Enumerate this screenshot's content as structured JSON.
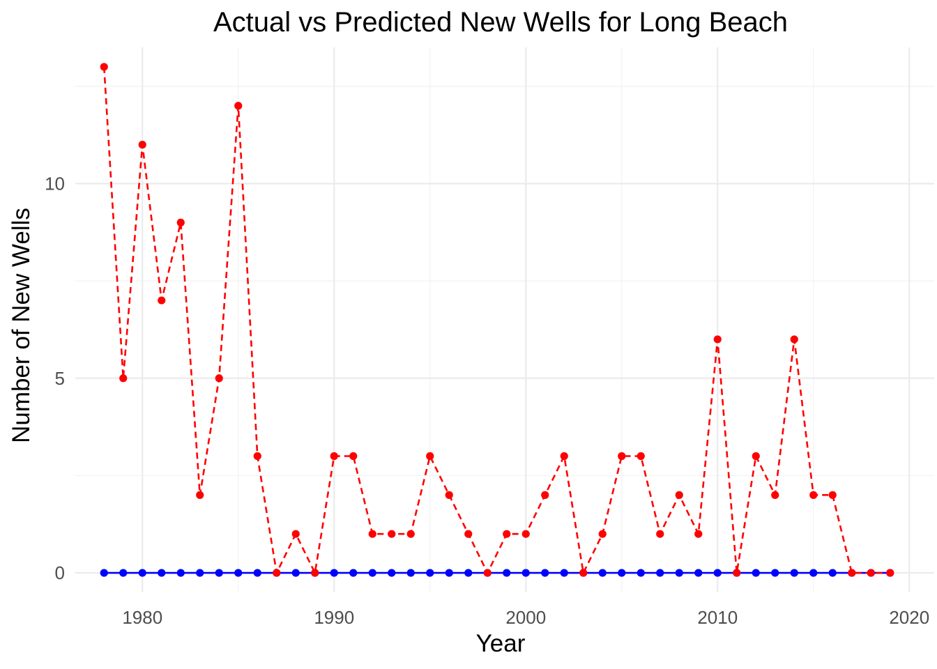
{
  "chart_data": {
    "type": "line",
    "title": "Actual vs Predicted New Wells for Long Beach",
    "xlabel": "Year",
    "ylabel": "Number of New Wells",
    "xlim": [
      1976.5,
      2021.3
    ],
    "ylim": [
      -0.5,
      13.5
    ],
    "x_ticks": [
      1980,
      1990,
      2000,
      2010,
      2020
    ],
    "y_ticks": [
      0,
      5,
      10
    ],
    "x_tick_labels": [
      "1980",
      "1990",
      "2000",
      "2010",
      "2020"
    ],
    "y_tick_labels": [
      "0",
      "5",
      "10"
    ],
    "grid": true,
    "legend": "none",
    "x": [
      1978,
      1979,
      1980,
      1981,
      1982,
      1983,
      1984,
      1985,
      1986,
      1987,
      1988,
      1989,
      1990,
      1991,
      1992,
      1993,
      1994,
      1995,
      1996,
      1997,
      1998,
      1999,
      2000,
      2001,
      2002,
      2003,
      2004,
      2005,
      2006,
      2007,
      2008,
      2009,
      2010,
      2011,
      2012,
      2013,
      2014,
      2015,
      2016,
      2017,
      2018,
      2019
    ],
    "series": [
      {
        "color": "#0000ff",
        "line_style": "solid",
        "values": [
          0,
          0,
          0,
          0,
          0,
          0,
          0,
          0,
          0,
          0,
          0,
          0,
          0,
          0,
          0,
          0,
          0,
          0,
          0,
          0,
          0,
          0,
          0,
          0,
          0,
          0,
          0,
          0,
          0,
          0,
          0,
          0,
          0,
          0,
          0,
          0,
          0,
          0,
          0,
          0,
          0,
          0
        ]
      },
      {
        "color": "#ff0000",
        "line_style": "dashed",
        "values": [
          13,
          5,
          11,
          7,
          9,
          2,
          5,
          12,
          3,
          0,
          1,
          0,
          3,
          3,
          1,
          1,
          1,
          3,
          2,
          1,
          0,
          1,
          1,
          2,
          3,
          0,
          1,
          3,
          3,
          1,
          2,
          1,
          6,
          0,
          3,
          2,
          6,
          2,
          2,
          0,
          0,
          0
        ]
      }
    ]
  }
}
